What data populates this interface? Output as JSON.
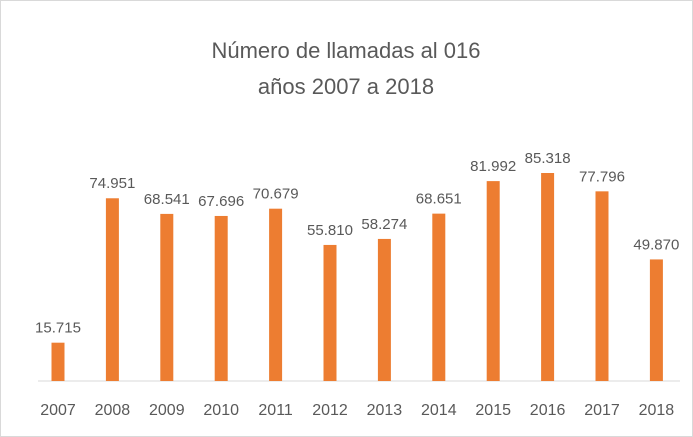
{
  "chart_data": {
    "type": "bar",
    "title": "Número de llamadas al 016",
    "subtitle": "años 2007 a 2018",
    "categories": [
      "2007",
      "2008",
      "2009",
      "2010",
      "2011",
      "2012",
      "2013",
      "2014",
      "2015",
      "2016",
      "2017",
      "2018"
    ],
    "values": [
      15715,
      74951,
      68541,
      67696,
      70679,
      55810,
      58274,
      68651,
      81992,
      85318,
      77796,
      49870
    ],
    "value_labels": [
      "15.715",
      "74.951",
      "68.541",
      "67.696",
      "70.679",
      "55.810",
      "58.274",
      "68.651",
      "81.992",
      "85.318",
      "77.796",
      "49.870"
    ],
    "color": "#ed7d31"
  }
}
